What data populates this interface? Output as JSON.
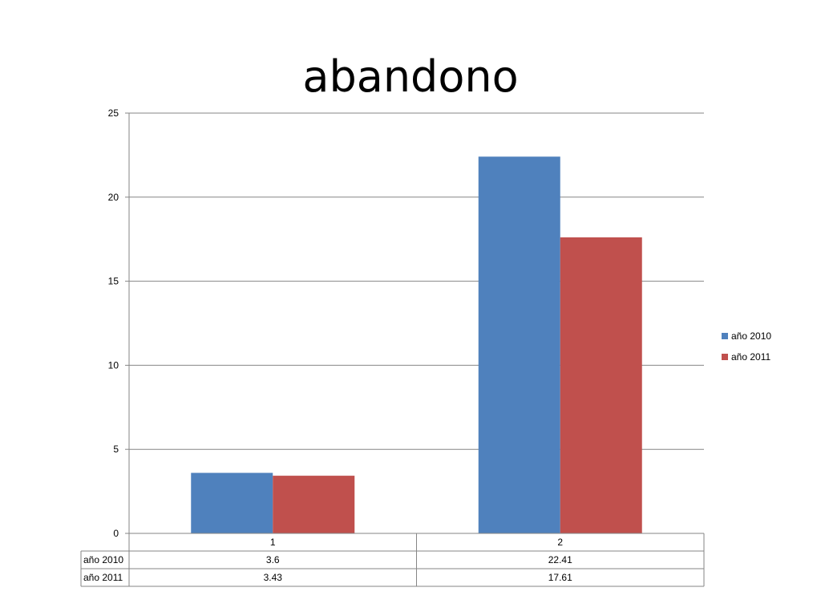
{
  "chart_data": {
    "type": "bar",
    "title": "abandono",
    "categories": [
      "1",
      "2"
    ],
    "series": [
      {
        "name": "año 2010",
        "values": [
          3.6,
          22.41
        ],
        "color": "#4f81bd"
      },
      {
        "name": "año 2011",
        "values": [
          3.43,
          17.61
        ],
        "color": "#c0504d"
      }
    ],
    "yticks": [
      "0",
      "5",
      "10",
      "15",
      "20",
      "25"
    ],
    "ylim": [
      0,
      25
    ],
    "grid": true,
    "legend": "right",
    "data_table": {
      "header": [
        "1",
        "2"
      ],
      "rows": [
        {
          "label": "año 2010",
          "cells": [
            "3.6",
            "22.41"
          ]
        },
        {
          "label": "año 2011",
          "cells": [
            "3.43",
            "17.61"
          ]
        }
      ]
    }
  }
}
